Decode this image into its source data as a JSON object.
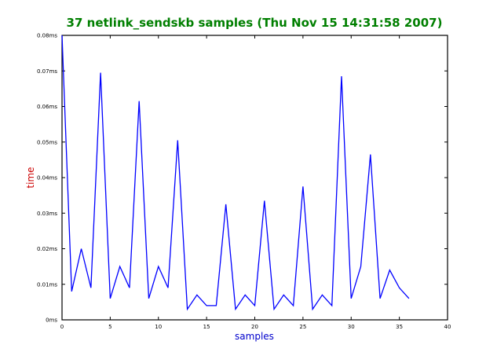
{
  "colors": {
    "title": "#007f00",
    "xlabel": "#0000cc",
    "ylabel": "#cc0000",
    "line": "#0000ff",
    "frame": "#000000",
    "background": "#ffffff"
  },
  "chart_data": {
    "type": "line",
    "title": "37 netlink_sendskb samples (Thu Nov 15 14:31:58 2007)",
    "xlabel": "samples",
    "ylabel": "time",
    "xlim": [
      0,
      40
    ],
    "ylim": [
      0,
      0.08
    ],
    "grid": false,
    "x_ticks": [
      0,
      5,
      10,
      15,
      20,
      25,
      30,
      35,
      40
    ],
    "x_tick_labels": [
      "0",
      "5",
      "10",
      "15",
      "20",
      "25",
      "30",
      "35",
      "40"
    ],
    "y_ticks": [
      0,
      0.01,
      0.02,
      0.03,
      0.04,
      0.05,
      0.06,
      0.07,
      0.08
    ],
    "y_tick_labels": [
      "0ms",
      "0.01ms",
      "0.02ms",
      "0.03ms",
      "0.04ms",
      "0.05ms",
      "0.06ms",
      "0.07ms",
      "0.08ms"
    ],
    "series": [
      {
        "x": [
          0,
          1,
          2,
          3,
          4,
          5,
          6,
          7,
          8,
          9,
          10,
          11,
          12,
          13,
          14,
          15,
          16,
          17,
          18,
          19,
          20,
          21,
          22,
          23,
          24,
          25,
          26,
          27,
          28,
          29,
          30,
          31,
          32,
          33,
          34,
          35,
          36
        ],
        "values": [
          0.08,
          0.008,
          0.02,
          0.009,
          0.0695,
          0.006,
          0.015,
          0.009,
          0.0615,
          0.006,
          0.015,
          0.009,
          0.0505,
          0.003,
          0.007,
          0.004,
          0.004,
          0.0325,
          0.003,
          0.007,
          0.004,
          0.0335,
          0.003,
          0.007,
          0.004,
          0.0375,
          0.003,
          0.007,
          0.004,
          0.0685,
          0.006,
          0.015,
          0.0465,
          0.006,
          0.014,
          0.009,
          0.006
        ]
      }
    ]
  }
}
